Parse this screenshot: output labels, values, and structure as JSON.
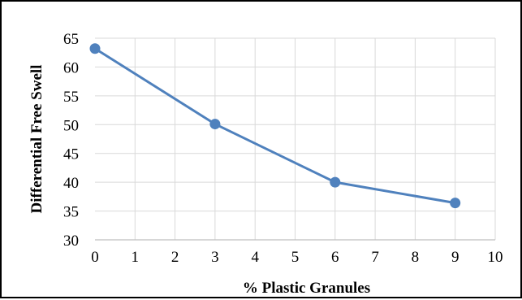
{
  "chart_data": {
    "type": "line",
    "title": "",
    "xlabel": "% Plastic Granules",
    "ylabel": "Differential  Free Swell",
    "xlim": [
      0,
      10
    ],
    "ylim": [
      30,
      65
    ],
    "x_ticks": [
      "0",
      "1",
      "2",
      "3",
      "4",
      "5",
      "6",
      "7",
      "8",
      "9",
      "10"
    ],
    "y_ticks": [
      "30",
      "35",
      "40",
      "45",
      "50",
      "55",
      "60",
      "65"
    ],
    "grid": true,
    "legend": "none",
    "series": [
      {
        "x": [
          0,
          3,
          6,
          9
        ],
        "y": [
          63.2,
          50.1,
          40.0,
          36.4
        ],
        "color": "#4f81bd"
      }
    ]
  }
}
